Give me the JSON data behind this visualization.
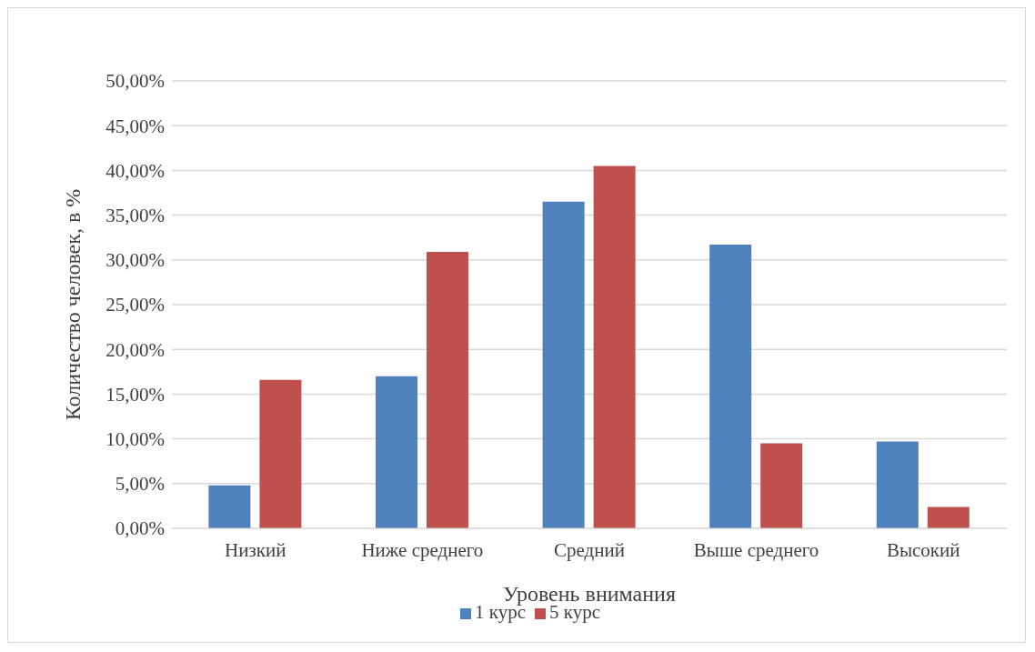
{
  "chart_data": {
    "type": "bar",
    "xlabel": "Уровень внимания",
    "ylabel": "Количество человек, в %",
    "categories": [
      "Низкий",
      "Ниже среднего",
      "Средний",
      "Выше среднего",
      "Высокий"
    ],
    "series": [
      {
        "name": "1 курс",
        "color": "#4f81bd",
        "values": [
          4.8,
          17.0,
          36.5,
          31.7,
          9.7
        ]
      },
      {
        "name": "5 курс",
        "color": "#c0504d",
        "values": [
          16.6,
          30.9,
          40.5,
          9.5,
          2.4
        ]
      }
    ],
    "ylim": [
      0,
      50
    ],
    "yticks": [
      {
        "value": 0,
        "label": "0,00%"
      },
      {
        "value": 5,
        "label": "5,00%"
      },
      {
        "value": 10,
        "label": "10,00%"
      },
      {
        "value": 15,
        "label": "15,00%"
      },
      {
        "value": 20,
        "label": "20,00%"
      },
      {
        "value": 25,
        "label": "25,00%"
      },
      {
        "value": 30,
        "label": "30,00%"
      },
      {
        "value": 35,
        "label": "35,00%"
      },
      {
        "value": 40,
        "label": "40,00%"
      },
      {
        "value": 45,
        "label": "45,00%"
      },
      {
        "value": 50,
        "label": "50,00%"
      }
    ],
    "grid": "y",
    "legend": "bottom"
  }
}
